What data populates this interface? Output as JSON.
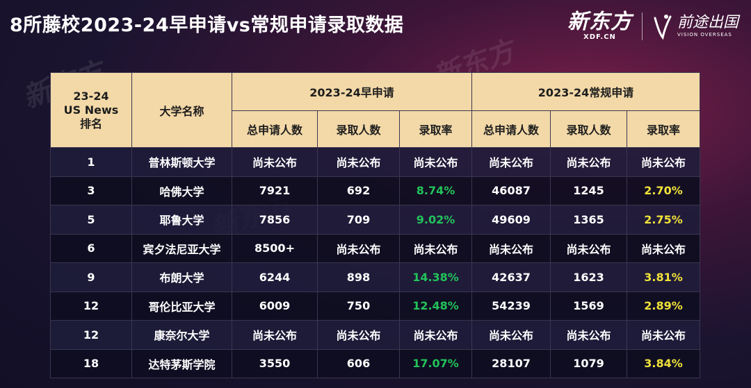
{
  "title": "8所藤校2023-24早申请vs常规申请录取数据",
  "brand": {
    "xdf_name": "新东方",
    "xdf_sub": "XDF.CN",
    "vision_name": "前途出国",
    "vision_sub": "VISION OVERSEAS"
  },
  "table": {
    "header": {
      "rank": "23-24 US News 排名",
      "university": "大学名称",
      "early_group": "2023-24早申请",
      "regular_group": "2023-24常规申请",
      "cols": [
        "总申请人数",
        "录取人数",
        "录取率",
        "总申请人数",
        "录取人数",
        "录取率"
      ]
    },
    "rows": [
      {
        "rank": "1",
        "name": "普林斯顿大学",
        "ea_total": "尚未公布",
        "ea_admit": "尚未公布",
        "ea_rate": "尚未公布",
        "rd_total": "尚未公布",
        "rd_admit": "尚未公布",
        "rd_rate": "尚未公布"
      },
      {
        "rank": "3",
        "name": "哈佛大学",
        "ea_total": "7921",
        "ea_admit": "692",
        "ea_rate": "8.74%",
        "rd_total": "46087",
        "rd_admit": "1245",
        "rd_rate": "2.70%"
      },
      {
        "rank": "5",
        "name": "耶鲁大学",
        "ea_total": "7856",
        "ea_admit": "709",
        "ea_rate": "9.02%",
        "rd_total": "49609",
        "rd_admit": "1365",
        "rd_rate": "2.75%"
      },
      {
        "rank": "6",
        "name": "宾夕法尼亚大学",
        "ea_total": "8500+",
        "ea_admit": "尚未公布",
        "ea_rate": "尚未公布",
        "rd_total": "尚未公布",
        "rd_admit": "尚未公布",
        "rd_rate": "尚未公布"
      },
      {
        "rank": "9",
        "name": "布朗大学",
        "ea_total": "6244",
        "ea_admit": "898",
        "ea_rate": "14.38%",
        "rd_total": "42637",
        "rd_admit": "1623",
        "rd_rate": "3.81%"
      },
      {
        "rank": "12",
        "name": "哥伦比亚大学",
        "ea_total": "6009",
        "ea_admit": "750",
        "ea_rate": "12.48%",
        "rd_total": "54239",
        "rd_admit": "1569",
        "rd_rate": "2.89%"
      },
      {
        "rank": "12",
        "name": "康奈尔大学",
        "ea_total": "尚未公布",
        "ea_admit": "尚未公布",
        "ea_rate": "尚未公布",
        "rd_total": "尚未公布",
        "rd_admit": "尚未公布",
        "rd_rate": "尚未公布"
      },
      {
        "rank": "18",
        "name": "达特茅斯学院",
        "ea_total": "3550",
        "ea_admit": "606",
        "ea_rate": "17.07%",
        "rd_total": "28107",
        "rd_admit": "1079",
        "rd_rate": "3.84%"
      }
    ]
  },
  "colors": {
    "header_bg": "#f3d9a8",
    "ea_rate_highlight": "#22c35a",
    "rd_rate_highlight": "#f0e23a"
  }
}
